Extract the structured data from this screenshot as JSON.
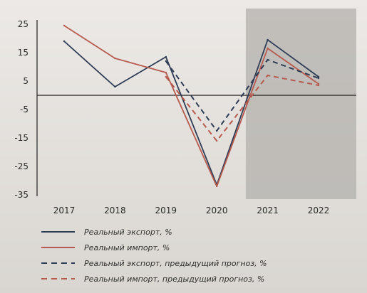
{
  "chart_data": {
    "type": "line",
    "x": [
      "2017",
      "2018",
      "2019",
      "2020",
      "2021",
      "2022"
    ],
    "ylim": [
      -35,
      25
    ],
    "yticks": [
      "25",
      "15",
      "5",
      "-5",
      "-15",
      "-25",
      "-35"
    ],
    "grid": false,
    "shaded_region": [
      "2021",
      "2022"
    ],
    "legend_position": "bottom",
    "series": [
      {
        "name": "Реальный экспорт, %",
        "color": "#2f3c55",
        "dashed": false,
        "values": [
          19,
          3,
          13.5,
          -31.5,
          19.5,
          6.5
        ]
      },
      {
        "name": "Реальный импорт, %",
        "color": "#b75b4e",
        "dashed": false,
        "values": [
          24.5,
          13,
          8,
          -32,
          16.5,
          4
        ]
      },
      {
        "name": "Реальный экспорт, предыдущий прогноз, %",
        "color": "#2f3c55",
        "dashed": true,
        "values": [
          null,
          null,
          12,
          -12.5,
          12.5,
          6
        ]
      },
      {
        "name": "Реальный импорт, предыдущий прогноз, %",
        "color": "#b75b4e",
        "dashed": true,
        "values": [
          null,
          null,
          6.5,
          -16,
          7,
          3.5
        ]
      }
    ]
  }
}
